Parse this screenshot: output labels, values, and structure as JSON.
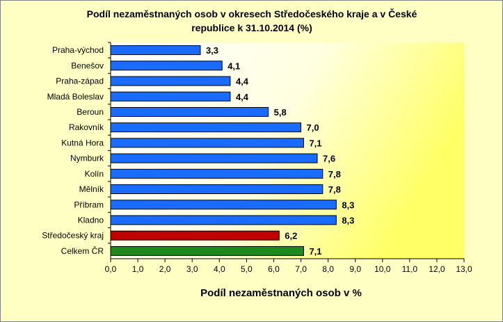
{
  "chart_data": {
    "type": "bar",
    "orientation": "horizontal",
    "title": "Podíl nezaměstnaných osob v okresech Středočeského kraje a v České republice k 31.10.2014 (%)",
    "title_lines": [
      "Podíl nezaměstnaných osob v okresech Středočeského kraje a v České",
      "republice k 31.10.2014 (%)"
    ],
    "xlabel": "Podíl nezaměstnaných osob v %",
    "ylabel": "",
    "xlim": [
      0,
      13
    ],
    "x_ticks": [
      "0,0",
      "1,0",
      "2,0",
      "3,0",
      "4,0",
      "5,0",
      "6,0",
      "7,0",
      "8,0",
      "9,0",
      "10,0",
      "11,0",
      "12,0",
      "13,0"
    ],
    "categories": [
      "Praha-východ",
      "Benešov",
      "Praha-západ",
      "Mladá Boleslav",
      "Beroun",
      "Rakovník",
      "Kutná Hora",
      "Nymburk",
      "Kolín",
      "Mělník",
      "Příbram",
      "Kladno",
      "Středočeský kraj",
      "Celkem ČR"
    ],
    "values": [
      3.3,
      4.1,
      4.4,
      4.4,
      5.8,
      7.0,
      7.1,
      7.6,
      7.8,
      7.8,
      8.3,
      8.3,
      6.2,
      7.1
    ],
    "value_labels": [
      "3,3",
      "4,1",
      "4,4",
      "4,4",
      "5,8",
      "7,0",
      "7,1",
      "7,6",
      "7,8",
      "7,8",
      "8,3",
      "8,3",
      "6,2",
      "7,1"
    ],
    "bar_colors": [
      "#1a6bff",
      "#1a6bff",
      "#1a6bff",
      "#1a6bff",
      "#1a6bff",
      "#1a6bff",
      "#1a6bff",
      "#1a6bff",
      "#1a6bff",
      "#1a6bff",
      "#1a6bff",
      "#1a6bff",
      "#c00000",
      "#1e8a1e"
    ],
    "grid": false,
    "legend": "none",
    "background_gradient": [
      "#ffffc4",
      "#ffff66"
    ]
  }
}
